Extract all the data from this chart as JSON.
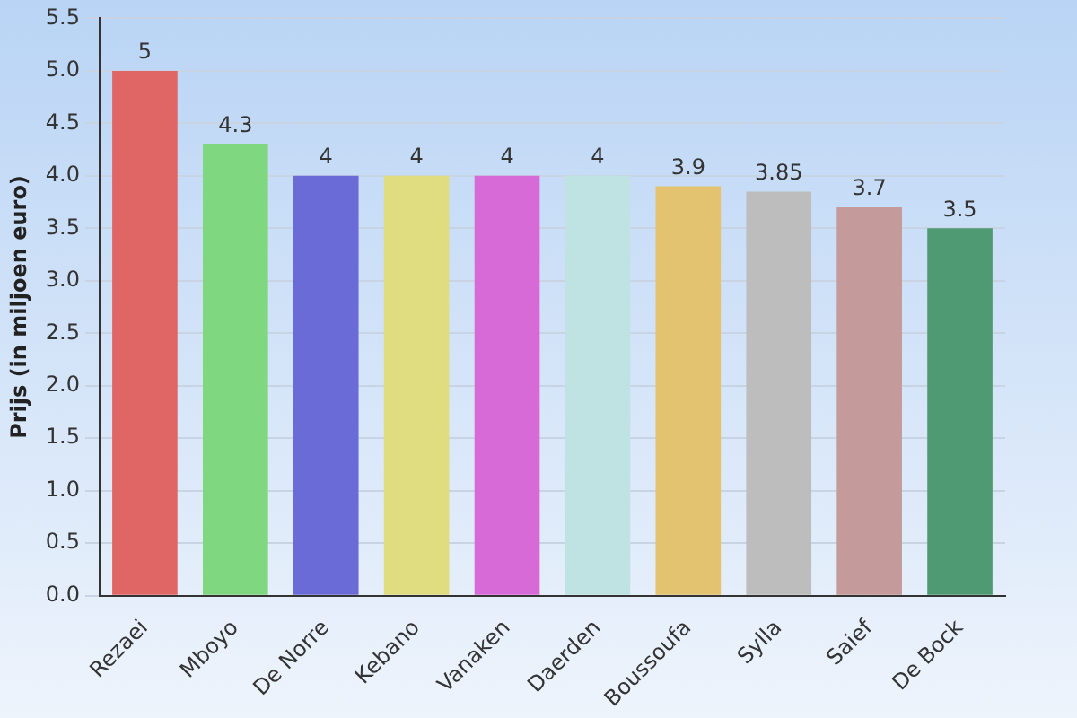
{
  "chart_data": {
    "type": "bar",
    "ylabel": "Prijs (in miljoen euro)",
    "categories": [
      "Rezaei",
      "Mboyo",
      "De Norre",
      "Kebano",
      "Vanaken",
      "Daerden",
      "Boussoufa",
      "Sylla",
      "Saief",
      "De Bock"
    ],
    "values": [
      5,
      4.3,
      4,
      4,
      4,
      4,
      3.9,
      3.85,
      3.7,
      3.5
    ],
    "colors": [
      "#e06666",
      "#7fd87f",
      "#6b6bd8",
      "#e0dc80",
      "#d86ad8",
      "#bfe3e3",
      "#e3c270",
      "#bdbdbd",
      "#c49a9a",
      "#4f9a72"
    ],
    "ylim": [
      0,
      5.5
    ],
    "yticks": [
      {
        "value": 0,
        "label": "0.0"
      },
      {
        "value": 0.5,
        "label": "0.5"
      },
      {
        "value": 1,
        "label": "1.0"
      },
      {
        "value": 1.5,
        "label": "1.5"
      },
      {
        "value": 2,
        "label": "2.0"
      },
      {
        "value": 2.5,
        "label": "2.5"
      },
      {
        "value": 3,
        "label": "3.0"
      },
      {
        "value": 3.5,
        "label": "3.5"
      },
      {
        "value": 4,
        "label": "4.0"
      },
      {
        "value": 4.5,
        "label": "4.5"
      },
      {
        "value": 5,
        "label": "5.0"
      },
      {
        "value": 5.5,
        "label": "5.5"
      }
    ],
    "grid": "y",
    "data_labels": true,
    "legend": false
  }
}
